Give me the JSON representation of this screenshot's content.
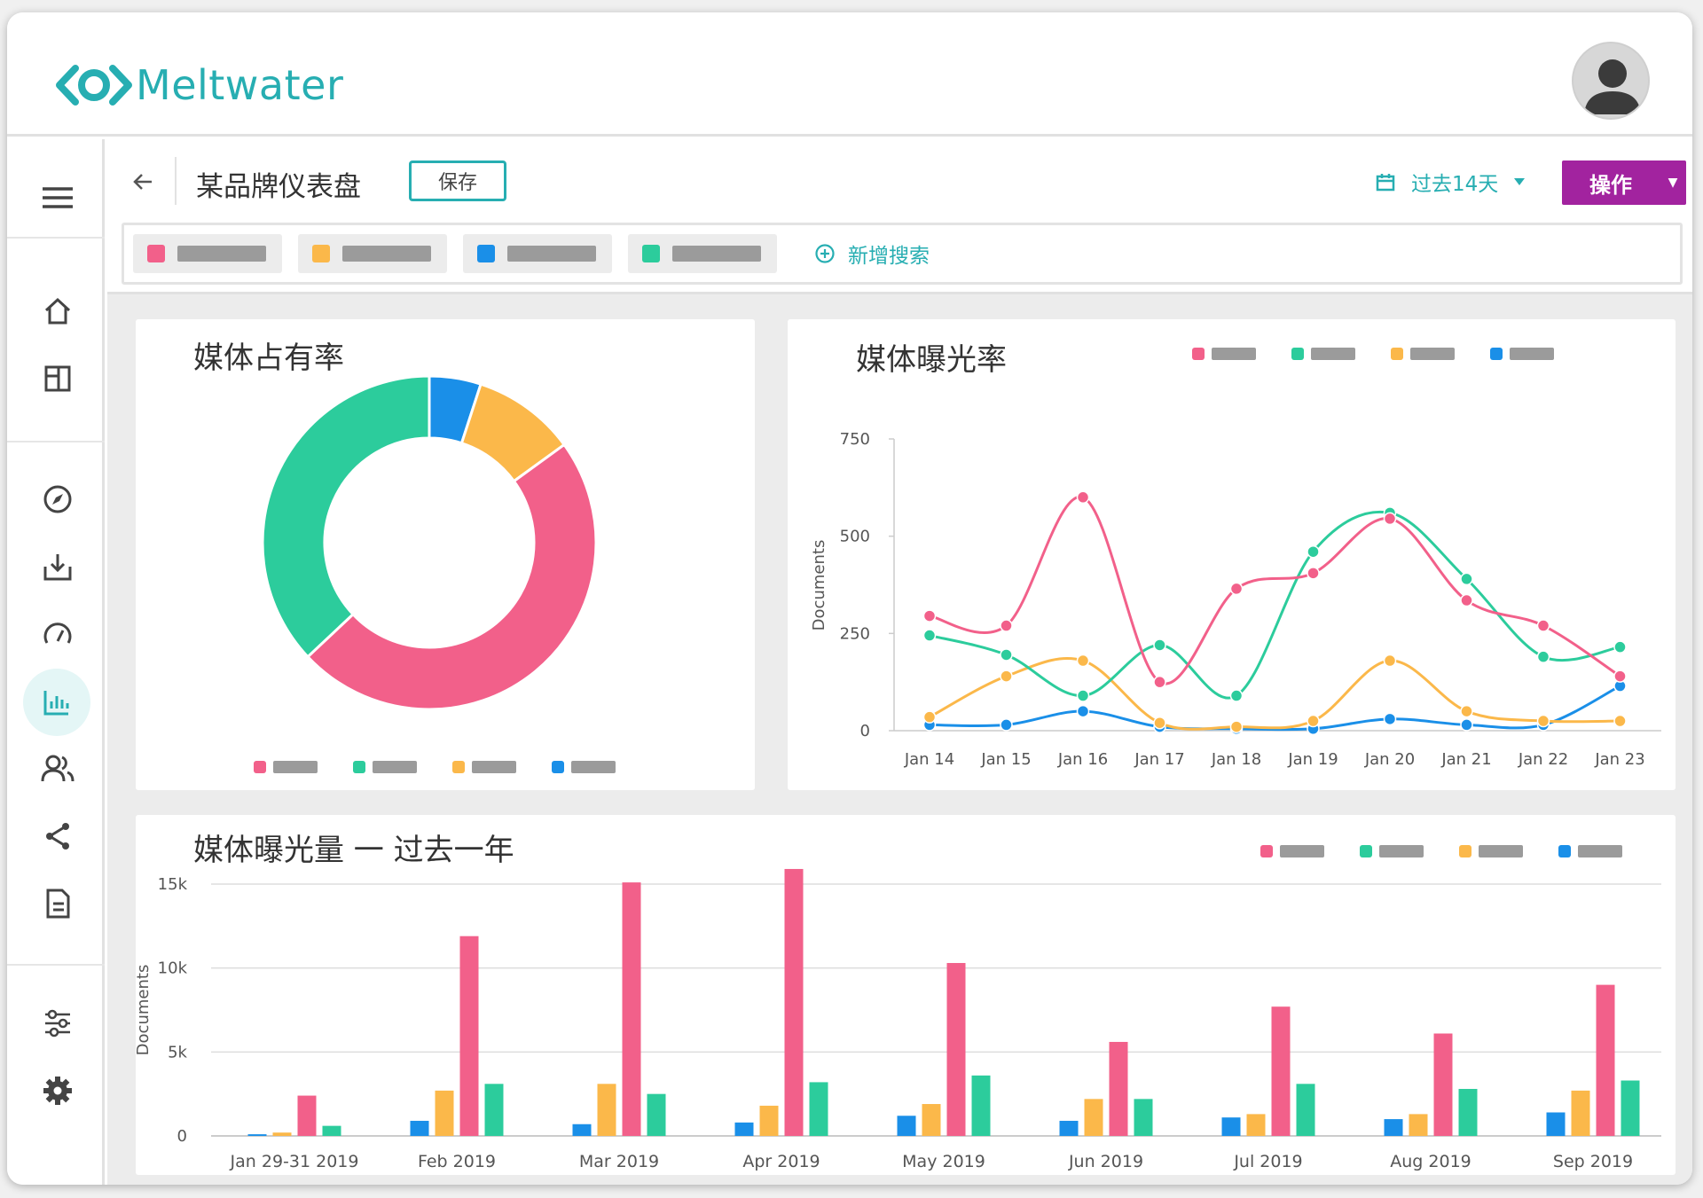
{
  "brand": {
    "name": "Meltwater",
    "accent": "#27aeb2",
    "action_color": "#a2239f"
  },
  "header": {
    "avatar_icon": "user-avatar-icon"
  },
  "sidebar": {
    "items": [
      {
        "name": "menu",
        "icon": "hamburger-icon"
      },
      {
        "name": "home",
        "icon": "home-icon"
      },
      {
        "name": "dashboards",
        "icon": "layout-icon"
      },
      {
        "name": "explore",
        "icon": "compass-icon"
      },
      {
        "name": "inbox",
        "icon": "inbox-download-icon"
      },
      {
        "name": "monitor",
        "icon": "gauge-icon"
      },
      {
        "name": "analytics",
        "icon": "bar-chart-icon",
        "active": true
      },
      {
        "name": "influencers",
        "icon": "people-icon"
      },
      {
        "name": "share",
        "icon": "share-icon"
      },
      {
        "name": "reports",
        "icon": "document-icon"
      },
      {
        "name": "filters",
        "icon": "sliders-icon"
      },
      {
        "name": "settings",
        "icon": "gear-icon"
      }
    ]
  },
  "toolbar": {
    "title": "某品牌仪表盘",
    "save_label": "保存",
    "date_range": "过去14天",
    "action_label": "操作"
  },
  "search": {
    "chips": [
      {
        "color": "#f2608a"
      },
      {
        "color": "#fbb84a"
      },
      {
        "color": "#1a8fe8"
      },
      {
        "color": "#2ccc9c"
      }
    ],
    "add_label": "新增搜索"
  },
  "colors": {
    "pink": "#f2608a",
    "green": "#2ccc9c",
    "orange": "#fbb84a",
    "blue": "#1a8fe8"
  },
  "cards": {
    "share_of_voice": {
      "title": "媒体占有率"
    },
    "exposure_rate": {
      "title": "媒体曝光率"
    },
    "exposure_year": {
      "title": "媒体曝光量 一 过去一年"
    }
  },
  "chart_data": [
    {
      "id": "share_of_voice",
      "type": "pie",
      "title": "媒体占有率",
      "series": [
        {
          "name": "blue",
          "color": "#1a8fe8",
          "value": 5
        },
        {
          "name": "orange",
          "color": "#fbb84a",
          "value": 10
        },
        {
          "name": "pink",
          "color": "#f2608a",
          "value": 48
        },
        {
          "name": "green",
          "color": "#2ccc9c",
          "value": 37
        }
      ],
      "legend_order": [
        "pink",
        "green",
        "orange",
        "blue"
      ]
    },
    {
      "id": "exposure_rate",
      "type": "line",
      "title": "媒体曝光率",
      "ylabel": "Documents",
      "ylim": [
        0,
        750
      ],
      "yticks": [
        0,
        250,
        500,
        750
      ],
      "categories": [
        "Jan 14",
        "Jan 15",
        "Jan 16",
        "Jan 17",
        "Jan 18",
        "Jan 19",
        "Jan 20",
        "Jan 21",
        "Jan 22",
        "Jan 23"
      ],
      "series": [
        {
          "name": "pink",
          "color": "#f2608a",
          "values": [
            295,
            270,
            600,
            125,
            365,
            405,
            545,
            335,
            270,
            140
          ]
        },
        {
          "name": "green",
          "color": "#2ccc9c",
          "values": [
            245,
            195,
            90,
            220,
            90,
            460,
            560,
            390,
            190,
            215
          ]
        },
        {
          "name": "orange",
          "color": "#fbb84a",
          "values": [
            35,
            140,
            180,
            20,
            10,
            25,
            180,
            50,
            25,
            25
          ]
        },
        {
          "name": "blue",
          "color": "#1a8fe8",
          "values": [
            15,
            15,
            50,
            10,
            5,
            5,
            30,
            15,
            15,
            115
          ]
        }
      ],
      "legend_order": [
        "pink",
        "green",
        "orange",
        "blue"
      ]
    },
    {
      "id": "exposure_year",
      "type": "bar",
      "title": "媒体曝光量 一 过去一年",
      "ylabel": "Documents",
      "ylim": [
        0,
        15000
      ],
      "yticks": [
        0,
        5000,
        10000,
        15000
      ],
      "ytick_labels": [
        "0",
        "5k",
        "10k",
        "15k"
      ],
      "categories": [
        "Jan 29-31 2019",
        "Feb 2019",
        "Mar 2019",
        "Apr 2019",
        "May 2019",
        "Jun 2019",
        "Jul 2019",
        "Aug 2019",
        "Sep 2019"
      ],
      "series": [
        {
          "name": "blue",
          "color": "#1a8fe8",
          "values": [
            100,
            900,
            700,
            800,
            1200,
            900,
            1100,
            1000,
            1400
          ]
        },
        {
          "name": "orange",
          "color": "#fbb84a",
          "values": [
            200,
            2700,
            3100,
            1800,
            1900,
            2200,
            1300,
            1300,
            2700
          ]
        },
        {
          "name": "pink",
          "color": "#f2608a",
          "values": [
            2400,
            11900,
            15100,
            15900,
            10300,
            5600,
            7700,
            6100,
            9000
          ]
        },
        {
          "name": "green",
          "color": "#2ccc9c",
          "values": [
            600,
            3100,
            2500,
            3200,
            3600,
            2200,
            3100,
            2800,
            3300
          ]
        }
      ],
      "legend_order": [
        "pink",
        "green",
        "orange",
        "blue"
      ]
    }
  ]
}
